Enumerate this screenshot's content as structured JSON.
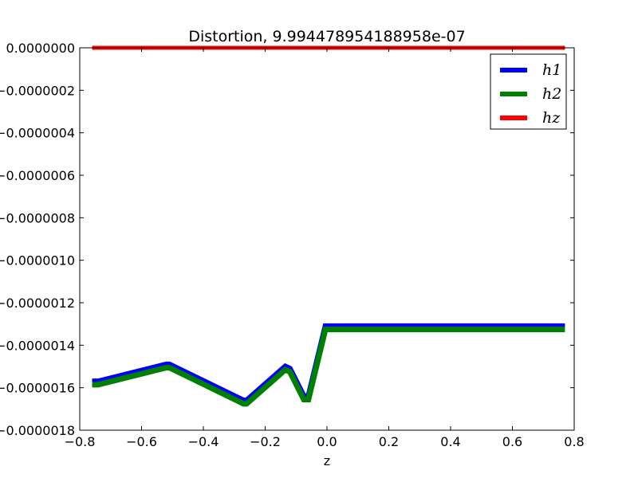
{
  "chart_data": {
    "type": "line",
    "title": "Distortion, 9.994478954188958e-07",
    "xlabel": "z",
    "ylabel": "",
    "xlim": [
      -0.8,
      0.8
    ],
    "ylim": [
      -1.8e-06,
      0.0
    ],
    "x_ticks": [
      -0.8,
      -0.6,
      -0.4,
      -0.2,
      0.0,
      0.2,
      0.4,
      0.6,
      0.8
    ],
    "x_tick_labels": [
      "−0.8",
      "−0.6",
      "−0.4",
      "−0.2",
      "0.0",
      "0.2",
      "0.4",
      "0.6",
      "0.8"
    ],
    "y_ticks": [
      0.0,
      -2e-07,
      -4e-07,
      -6e-07,
      -8e-07,
      -1e-06,
      -1.2e-06,
      -1.4e-06,
      -1.6e-06,
      -1.8e-06
    ],
    "y_tick_labels": [
      "0.0000000",
      "−0.0000002",
      "−0.0000004",
      "−0.0000006",
      "−0.0000008",
      "−0.0000010",
      "−0.0000012",
      "−0.0000014",
      "−0.0000016",
      "−0.0000018"
    ],
    "grid": false,
    "legend_position": "top-right",
    "series": [
      {
        "name": "h1",
        "color": "#0000ff",
        "x": [
          -0.76,
          -0.74,
          -0.52,
          -0.51,
          -0.27,
          -0.26,
          -0.135,
          -0.12,
          -0.075,
          -0.06,
          -0.005,
          0.01,
          0.77
        ],
        "y": [
          -1.57e-06,
          -1.57e-06,
          -1.49e-06,
          -1.49e-06,
          -1.66e-06,
          -1.66e-06,
          -1.5e-06,
          -1.51e-06,
          -1.64e-06,
          -1.64e-06,
          -1.31e-06,
          -1.31e-06,
          -1.31e-06
        ]
      },
      {
        "name": "h2",
        "color": "#008000",
        "x": [
          -0.76,
          -0.74,
          -0.52,
          -0.51,
          -0.27,
          -0.26,
          -0.135,
          -0.12,
          -0.075,
          -0.06,
          -0.005,
          0.01,
          0.77
        ],
        "y": [
          -1.58e-06,
          -1.58e-06,
          -1.5e-06,
          -1.5e-06,
          -1.67e-06,
          -1.67e-06,
          -1.51e-06,
          -1.52e-06,
          -1.65e-06,
          -1.65e-06,
          -1.32e-06,
          -1.32e-06,
          -1.32e-06
        ]
      },
      {
        "name": "hz",
        "color": "#ff0000",
        "x": [
          -0.76,
          0.77
        ],
        "y": [
          0.0,
          0.0
        ]
      }
    ]
  }
}
